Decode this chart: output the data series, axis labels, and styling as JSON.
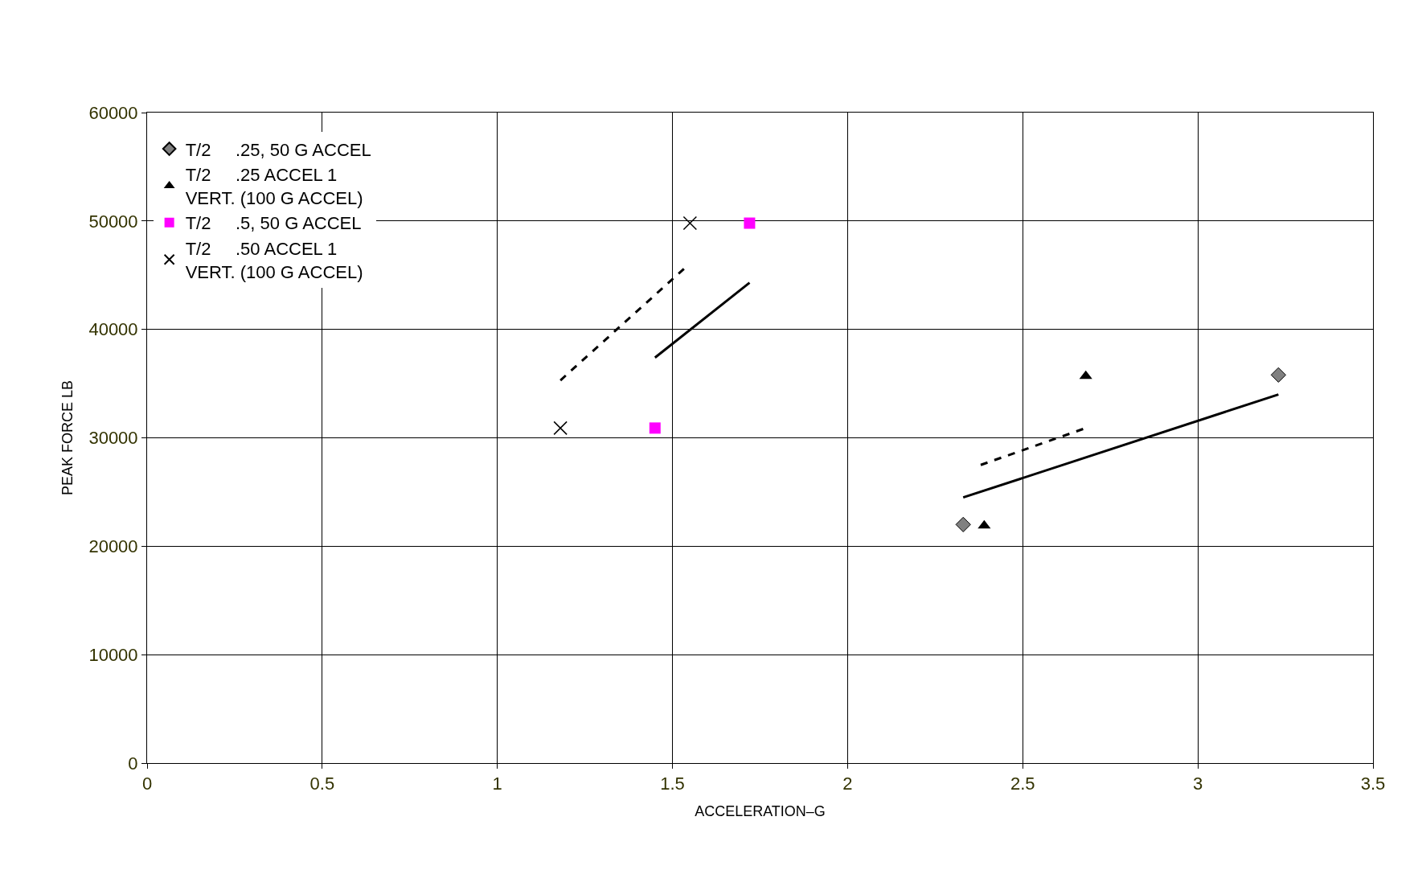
{
  "chart_data": {
    "type": "scatter",
    "xlabel": "ACCELERATION–G",
    "ylabel": "PEAK FORCE LB",
    "xlim": [
      0,
      3.5
    ],
    "xticks": [
      0,
      0.5,
      1,
      1.5,
      2,
      2.5,
      3,
      3.5
    ],
    "ylim": [
      0,
      60000
    ],
    "yticks": [
      0,
      10000,
      20000,
      30000,
      40000,
      50000,
      60000
    ],
    "grid": true,
    "legend": "top left",
    "series": [
      {
        "name": "T/2     .25, 50 G ACCEL",
        "color": "#808080",
        "marker": "diamond",
        "x": [
          2.33,
          3.23
        ],
        "values": [
          22000,
          35800
        ]
      },
      {
        "name": "T/2     .25 ACCEL 1\nVERT. (100 G ACCEL)",
        "color": "#000000",
        "marker": "triangle",
        "x": [
          2.39,
          2.68
        ],
        "values": [
          21900,
          35700
        ]
      },
      {
        "name": "T/2     .5, 50 G ACCEL",
        "color": "#ff00ff",
        "marker": "square",
        "x": [
          1.45,
          1.72
        ],
        "values": [
          30900,
          49800
        ]
      },
      {
        "name": "T/2     .50 ACCEL 1\nVERT. (100 G ACCEL)",
        "color": "#000000",
        "marker": "cross",
        "x": [
          1.18,
          1.55
        ],
        "values": [
          30900,
          49800
        ]
      },
      {
        "type": "line",
        "color": "#000000",
        "marker": "none",
        "line_style": "dashed",
        "x": [
          1.18,
          1.54
        ],
        "values": [
          35300,
          45800
        ]
      },
      {
        "type": "line",
        "color": "#000000",
        "marker": "none",
        "line_style": "solid",
        "x": [
          1.45,
          1.72
        ],
        "values": [
          37400,
          44300
        ]
      },
      {
        "type": "line",
        "color": "#000000",
        "marker": "none",
        "line_style": "solid",
        "x": [
          2.33,
          3.23
        ],
        "values": [
          24500,
          34000
        ]
      },
      {
        "type": "line",
        "color": "#000000",
        "marker": "none",
        "line_style": "dashed",
        "x": [
          2.38,
          2.68
        ],
        "values": [
          27500,
          30900
        ]
      }
    ]
  }
}
